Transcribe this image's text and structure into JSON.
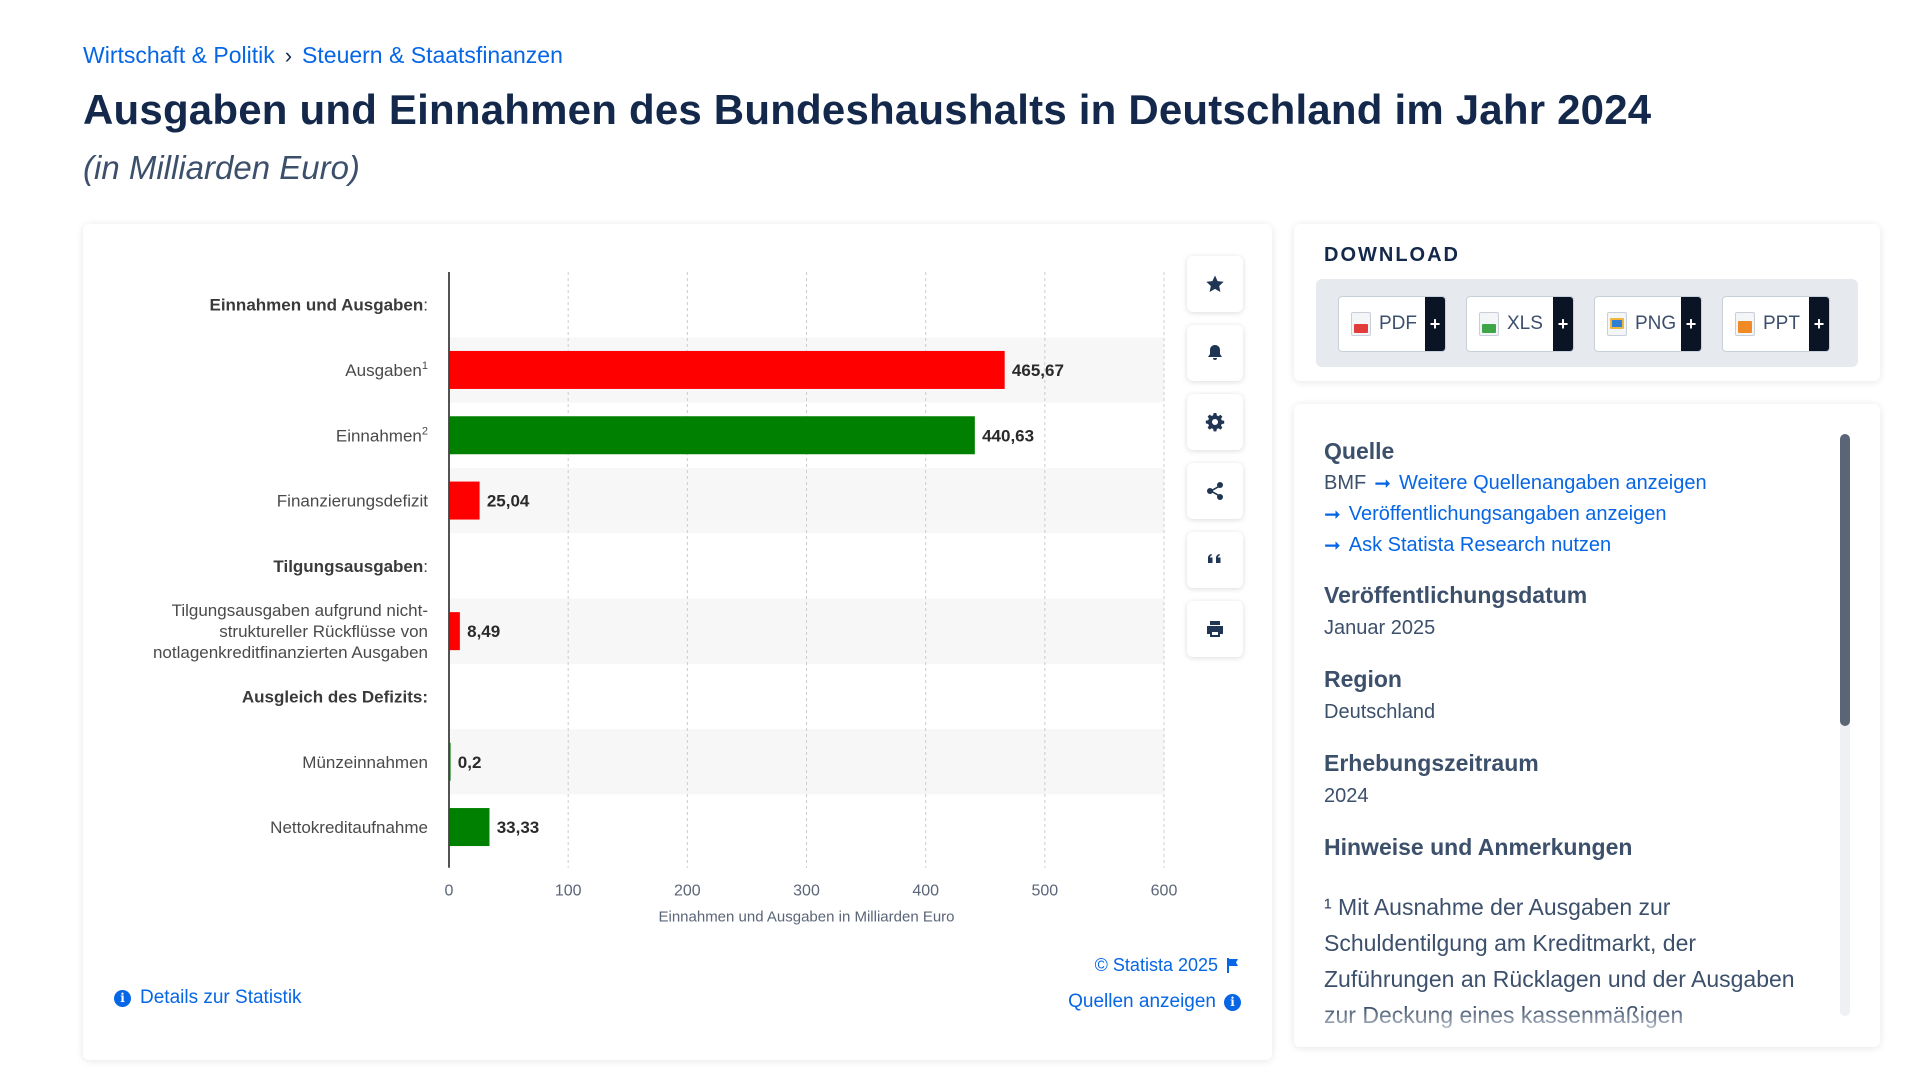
{
  "breadcrumb": {
    "items": [
      "Wirtschaft & Politik",
      "Steuern & Staatsfinanzen"
    ],
    "separator": "›"
  },
  "page": {
    "title": "Ausgaben und Einnahmen des Bundeshaushalts in Deutschland im Jahr 2024",
    "subtitle": "(in Milliarden Euro)"
  },
  "chart_data": {
    "type": "bar",
    "orientation": "horizontal",
    "xlabel": "Einnahmen und Ausgaben in Milliarden Euro",
    "xlim": [
      0,
      600
    ],
    "xticks": [
      "0",
      "100",
      "200",
      "300",
      "400",
      "500",
      "600"
    ],
    "grid": true,
    "rows": [
      {
        "label": "Einnahmen und Ausgaben",
        "suffix": ":",
        "header": true
      },
      {
        "label": "Ausgaben",
        "sup": "1",
        "value": 465.67,
        "value_label": "465,67",
        "color": "#ff0000"
      },
      {
        "label": "Einnahmen",
        "sup": "2",
        "value": 440.63,
        "value_label": "440,63",
        "color": "#008000"
      },
      {
        "label": "Finanzierungsdefizit",
        "value": 25.04,
        "value_label": "25,04",
        "color": "#ff0000"
      },
      {
        "label": "Tilgungsausgaben",
        "suffix": ":",
        "header": true
      },
      {
        "label": "Tilgungsausgaben aufgrund nicht-\nstruktureller Rückflüsse von\nnotlagenkreditfinanzierten Ausgaben",
        "value": 8.49,
        "value_label": "8,49",
        "color": "#ff0000"
      },
      {
        "label": "Ausgleich des Defizits:",
        "header": true
      },
      {
        "label": "Münzeinnahmen",
        "value": 0.2,
        "value_label": "0,2",
        "color": "#008000"
      },
      {
        "label": "Nettokreditaufnahme",
        "value": 33.33,
        "value_label": "33,33",
        "color": "#008000"
      }
    ]
  },
  "chart_footer": {
    "copyright": "© Statista 2025",
    "sources": "Quellen anzeigen",
    "details": "Details zur Statistik"
  },
  "tools": [
    "star-icon",
    "bell-icon",
    "gear-icon",
    "share-icon",
    "quote-icon",
    "print-icon"
  ],
  "download": {
    "title": "DOWNLOAD",
    "buttons": [
      {
        "label": "PDF",
        "color": "#e23b3b"
      },
      {
        "label": "XLS",
        "color": "#3fa648"
      },
      {
        "label": "PNG",
        "color": "#2f7fd6"
      },
      {
        "label": "PPT",
        "color": "#f08a24"
      }
    ],
    "plus": "+"
  },
  "info": {
    "source_heading": "Quelle",
    "source_name": "BMF",
    "source_link": "Weitere Quellenangaben anzeigen",
    "publication_link": "Veröffentlichungsangaben anzeigen",
    "research_link": "Ask Statista Research nutzen",
    "date_heading": "Veröffentlichungsdatum",
    "date_value": "Januar 2025",
    "region_heading": "Region",
    "region_value": "Deutschland",
    "period_heading": "Erhebungszeitraum",
    "period_value": "2024",
    "notes_heading": "Hinweise und Anmerkungen",
    "notes_text": "¹ Mit Ausnahme der Ausgaben zur Schuldentilgung am Kreditmarkt, der Zuführungen an Rücklagen und der Ausgaben zur Deckung eines kassenmäßigen"
  },
  "colors": {
    "accent": "#0666e5",
    "title": "#13284b",
    "red_bar": "#ff0000",
    "green_bar": "#008000"
  }
}
